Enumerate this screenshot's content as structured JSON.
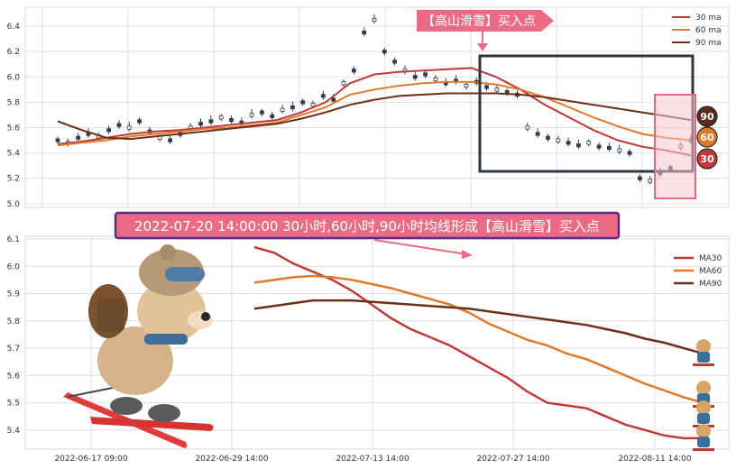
{
  "chart_data": [
    {
      "type": "candlestick+line",
      "ylim": [
        4.97,
        6.55
      ],
      "yticks": [
        "5.0",
        "5.2",
        "5.4",
        "5.6",
        "5.8",
        "6.0",
        "6.2",
        "6.4"
      ],
      "legend": {
        "placement": "top-right",
        "items": [
          {
            "label": "30 ma",
            "color": "#c0393b"
          },
          {
            "label": "60 ma",
            "color": "#e07a2b"
          },
          {
            "label": "90 ma",
            "color": "#6b2f1a"
          }
        ]
      },
      "buy_flag": "【高山滑雪】买入点",
      "badges": [
        "90",
        "60",
        "30"
      ],
      "ma_series": [
        {
          "name": "30 ma",
          "color": "#c0393b",
          "values": [
            5.47,
            5.49,
            5.52,
            5.55,
            5.57,
            5.58,
            5.6,
            5.62,
            5.64,
            5.66,
            5.72,
            5.8,
            5.95,
            6.02,
            6.04,
            6.05,
            6.06,
            6.07,
            6.0,
            5.9,
            5.78,
            5.68,
            5.58,
            5.5,
            5.45,
            5.42,
            5.38
          ]
        },
        {
          "name": "60 ma",
          "color": "#e07a2b",
          "values": [
            5.46,
            5.48,
            5.5,
            5.53,
            5.55,
            5.57,
            5.59,
            5.6,
            5.62,
            5.64,
            5.7,
            5.76,
            5.86,
            5.9,
            5.93,
            5.95,
            5.96,
            5.96,
            5.94,
            5.9,
            5.84,
            5.76,
            5.68,
            5.61,
            5.55,
            5.52,
            5.5
          ]
        },
        {
          "name": "90 ma",
          "color": "#6b2f1a",
          "values": [
            5.65,
            5.58,
            5.52,
            5.51,
            5.53,
            5.55,
            5.57,
            5.59,
            5.61,
            5.63,
            5.67,
            5.72,
            5.78,
            5.82,
            5.85,
            5.86,
            5.87,
            5.87,
            5.87,
            5.86,
            5.84,
            5.81,
            5.78,
            5.75,
            5.72,
            5.69,
            5.66
          ]
        }
      ],
      "candles": [
        5.5,
        5.48,
        5.52,
        5.55,
        5.53,
        5.58,
        5.62,
        5.6,
        5.65,
        5.57,
        5.52,
        5.5,
        5.55,
        5.6,
        5.63,
        5.65,
        5.68,
        5.66,
        5.64,
        5.7,
        5.72,
        5.69,
        5.74,
        5.76,
        5.8,
        5.78,
        5.85,
        5.82,
        5.95,
        6.05,
        6.35,
        6.45,
        6.2,
        6.12,
        6.05,
        6.0,
        6.02,
        5.98,
        5.95,
        5.97,
        5.93,
        5.96,
        5.92,
        5.9,
        5.88,
        5.86,
        5.6,
        5.55,
        5.52,
        5.5,
        5.48,
        5.46,
        5.48,
        5.45,
        5.44,
        5.42,
        5.4,
        5.2,
        5.18,
        5.24,
        5.28,
        5.45,
        5.5
      ]
    },
    {
      "type": "line",
      "ylim": [
        5.33,
        6.11
      ],
      "yticks": [
        "5.4",
        "5.5",
        "5.6",
        "5.7",
        "5.8",
        "5.9",
        "6.0",
        "6.1"
      ],
      "xticks": [
        "2022-06-17 09:00",
        "2022-06-29 14:00",
        "2022-07-13 14:00",
        "2022-07-27 14:00",
        "2022-08-11 14:00"
      ],
      "legend": {
        "placement": "top-right"
      },
      "annotation": "2022-07-20 14:00:00 30小时,60小时,90小时均线形成【高山滑雪】买入点",
      "series": [
        {
          "name": "MA30",
          "color": "#c0393b",
          "values": [
            6.07,
            6.05,
            6.01,
            5.98,
            5.95,
            5.91,
            5.86,
            5.81,
            5.77,
            5.74,
            5.71,
            5.67,
            5.63,
            5.59,
            5.54,
            5.5,
            5.49,
            5.48,
            5.45,
            5.42,
            5.4,
            5.38,
            5.37,
            5.37
          ]
        },
        {
          "name": "MA60",
          "color": "#e07a2b",
          "values": [
            5.94,
            5.95,
            5.96,
            5.965,
            5.96,
            5.95,
            5.935,
            5.92,
            5.9,
            5.88,
            5.86,
            5.83,
            5.79,
            5.76,
            5.73,
            5.71,
            5.68,
            5.66,
            5.63,
            5.6,
            5.57,
            5.545,
            5.52,
            5.5
          ]
        },
        {
          "name": "MA90",
          "color": "#6b2f1a",
          "values": [
            5.845,
            5.855,
            5.865,
            5.875,
            5.875,
            5.875,
            5.87,
            5.865,
            5.86,
            5.855,
            5.85,
            5.845,
            5.835,
            5.825,
            5.815,
            5.805,
            5.795,
            5.785,
            5.77,
            5.755,
            5.735,
            5.72,
            5.7,
            5.68
          ]
        }
      ]
    }
  ]
}
